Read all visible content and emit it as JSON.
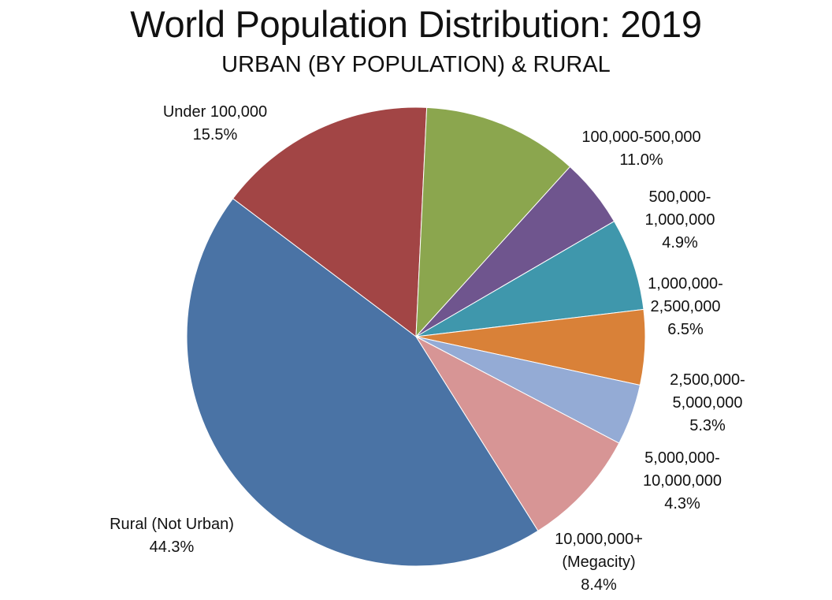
{
  "chart_data": {
    "type": "pie",
    "title": "World Population Distribution: 2019",
    "subtitle": "URBAN (BY POPULATION) & RURAL",
    "slices": [
      {
        "lines": [
          "Under 100,000"
        ],
        "pct_label": "15.5%",
        "value": 15.5,
        "color": "#a24545"
      },
      {
        "lines": [
          "100,000-500,000"
        ],
        "pct_label": "11.0%",
        "value": 11.0,
        "color": "#8ba64e"
      },
      {
        "lines": [
          "500,000-",
          "1,000,000"
        ],
        "pct_label": "4.9%",
        "value": 4.9,
        "color": "#6f558e"
      },
      {
        "lines": [
          "1,000,000-",
          "2,500,000"
        ],
        "pct_label": "6.5%",
        "value": 6.5,
        "color": "#3f97ac"
      },
      {
        "lines": [
          "2,500,000-",
          "5,000,000"
        ],
        "pct_label": "5.3%",
        "value": 5.3,
        "color": "#d98138"
      },
      {
        "lines": [
          "5,000,000-",
          "10,000,000"
        ],
        "pct_label": "4.3%",
        "value": 4.3,
        "color": "#94abd5"
      },
      {
        "lines": [
          "10,000,000+",
          "(Megacity)"
        ],
        "pct_label": "8.4%",
        "value": 8.4,
        "color": "#d79595"
      },
      {
        "lines": [
          "Rural (Not Urban)"
        ],
        "pct_label": "44.3%",
        "value": 44.3,
        "color": "#4a73a5"
      }
    ]
  }
}
